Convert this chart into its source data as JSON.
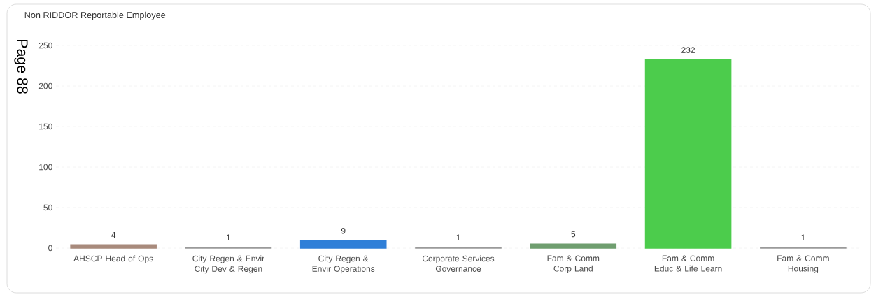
{
  "chart_data": {
    "type": "bar",
    "title": "Non RIDDOR Reportable Employee",
    "categories": [
      "AHSCP Head of Ops",
      "City Regen & Envir City Dev & Regen",
      "City Regen & Envir Operations",
      "Corporate Services Governance",
      "Fam & Comm Corp Land",
      "Fam & Comm Educ & Life Learn",
      "Fam & Comm Housing"
    ],
    "values": [
      4,
      1,
      9,
      1,
      5,
      232,
      1
    ],
    "colors": [
      "#a88a7c",
      "#9a9a9a",
      "#2f7fd8",
      "#9a9a9a",
      "#6f9e6f",
      "#4ccc4c",
      "#9a9a9a"
    ],
    "ylim": [
      0,
      250
    ],
    "yticks": [
      0,
      50,
      100,
      150,
      200,
      250
    ],
    "grid": "y",
    "data_labels": true,
    "annotations": [
      "Page 88"
    ]
  }
}
